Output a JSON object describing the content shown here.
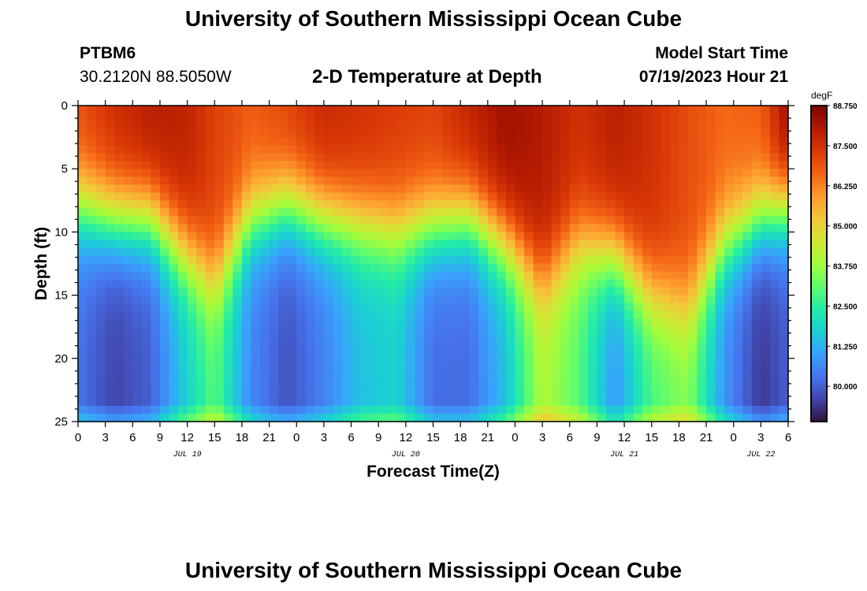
{
  "header": {
    "title": "University of Southern Mississippi Ocean Cube",
    "station": "PTBM6",
    "coordinates": "30.2120N  88.5050W",
    "subtitle": "2-D Temperature at Depth",
    "model_start_label": "Model Start Time",
    "model_start_value": "07/19/2023 Hour 21"
  },
  "footer": {
    "title": "University of Southern Mississippi Ocean Cube"
  },
  "chart_data": {
    "type": "heatmap",
    "title": "2-D Temperature at Depth",
    "xlabel": "Forecast Time(Z)",
    "ylabel": "Depth (ft)",
    "x_range_hours": [
      0,
      78
    ],
    "y_range_ft": [
      0,
      25
    ],
    "x_ticks": [
      "0",
      "3",
      "6",
      "9",
      "12",
      "15",
      "18",
      "21",
      "0",
      "3",
      "6",
      "9",
      "12",
      "15",
      "18",
      "21",
      "0",
      "3",
      "6",
      "9",
      "12",
      "15",
      "18",
      "21",
      "0",
      "3",
      "6"
    ],
    "y_ticks": [
      "0",
      "5",
      "10",
      "15",
      "20",
      "25"
    ],
    "date_labels": [
      {
        "label": "JUL 19",
        "hour": 12
      },
      {
        "label": "JUL 20",
        "hour": 36
      },
      {
        "label": "JUL 21",
        "hour": 60
      },
      {
        "label": "JUL 22",
        "hour": 75
      }
    ],
    "colorbar": {
      "unit": "degF",
      "min": 78.9,
      "max": 88.75,
      "labels": [
        "88.750",
        "87.500",
        "86.250",
        "85.000",
        "83.750",
        "82.500",
        "81.250",
        "80.000"
      ],
      "colors": [
        "#30123b",
        "#4145ab",
        "#4675ed",
        "#39a2fc",
        "#1bcfd4",
        "#24eca6",
        "#61fc6c",
        "#a4fc3b",
        "#d1e834",
        "#f3c63a",
        "#fe9b2d",
        "#f36315",
        "#d93806",
        "#b11901",
        "#7a0402"
      ]
    },
    "thermocline_nodes": {
      "hours": [
        0,
        4,
        8,
        12,
        15,
        19,
        23,
        27,
        31,
        35,
        39,
        43,
        47,
        51,
        55,
        59,
        63,
        67,
        71,
        75,
        78
      ],
      "depth_ft": [
        8,
        9,
        9,
        12,
        14,
        9,
        8,
        9,
        9.5,
        10,
        9.5,
        9,
        11,
        14,
        11,
        12,
        15,
        16,
        11,
        9,
        8
      ]
    },
    "surface_temperature_nodes": {
      "hours": [
        0,
        4,
        8,
        12,
        15,
        19,
        23,
        27,
        31,
        35,
        39,
        43,
        47,
        51,
        55,
        59,
        63,
        67,
        71,
        75,
        78
      ],
      "degF": [
        87.0,
        87.6,
        88.0,
        87.8,
        87.2,
        86.8,
        87.2,
        87.7,
        87.5,
        87.3,
        87.2,
        87.8,
        88.3,
        88.0,
        87.5,
        87.9,
        87.5,
        87.0,
        86.6,
        86.8,
        88.5
      ]
    },
    "bottom_temperature_nodes": {
      "hours": [
        0,
        4,
        8,
        12,
        15,
        19,
        23,
        27,
        31,
        35,
        39,
        43,
        47,
        51,
        55,
        59,
        63,
        67,
        71,
        75,
        78
      ],
      "degF": [
        80.3,
        79.6,
        80.0,
        81.8,
        83.0,
        80.6,
        79.8,
        80.5,
        81.5,
        81.8,
        80.2,
        80.2,
        81.5,
        84.0,
        83.0,
        80.8,
        82.8,
        83.5,
        80.8,
        79.4,
        80.0
      ]
    }
  }
}
